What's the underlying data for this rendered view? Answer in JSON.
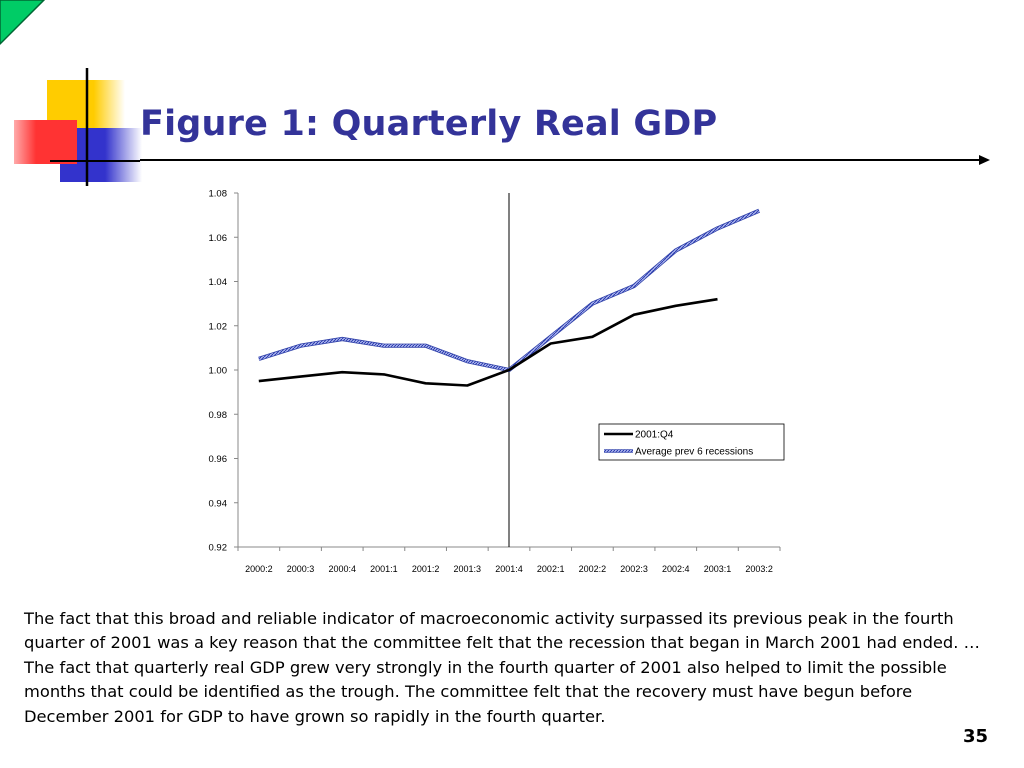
{
  "slide": {
    "title": "Figure 1: Quarterly Real GDP",
    "body": "The fact that this broad and reliable indicator of macroeconomic activity surpassed its previous peak in the fourth quarter of 2001 was a key reason that the committee felt that the recession that began in March 2001 had ended. … The fact that quarterly real GDP grew very strongly in the fourth quarter of 2001 also helped to limit the possible months that could be identified as the trough. The committee felt that the recovery must have begun before December 2001 for GDP to have grown so rapidly in the fourth quarter.",
    "page_number": "35",
    "colors": {
      "title": "#333399",
      "accent_green": "#00cc66",
      "deco_yellow": "#ffcc00",
      "deco_red": "#ff3333",
      "deco_blue": "#3333cc"
    }
  },
  "chart_data": {
    "type": "line",
    "title": "",
    "xlabel": "",
    "ylabel": "",
    "categories": [
      "2000:2",
      "2000:3",
      "2000:4",
      "2001:1",
      "2001:2",
      "2001:3",
      "2001:4",
      "2002:1",
      "2002:2",
      "2002:3",
      "2002:4",
      "2003:1",
      "2003:2"
    ],
    "ylim": [
      0.92,
      1.08
    ],
    "yticks": [
      "0.92",
      "0.94",
      "0.96",
      "0.98",
      "1.00",
      "1.02",
      "1.04",
      "1.06",
      "1.08"
    ],
    "grid": false,
    "vertical_marker_category": "2001:4",
    "legend_position": "bottom-right",
    "series": [
      {
        "name": "2001:Q4",
        "color": "#000000",
        "style": "solid",
        "values": [
          0.995,
          0.997,
          0.999,
          0.998,
          0.994,
          0.993,
          1.0,
          1.012,
          1.015,
          1.025,
          1.029,
          1.032,
          null
        ]
      },
      {
        "name": "Average prev 6 recessions",
        "color": "#5566cc",
        "style": "hatched",
        "values": [
          1.005,
          1.011,
          1.014,
          1.011,
          1.011,
          1.004,
          1.0,
          1.015,
          1.03,
          1.038,
          1.054,
          1.064,
          1.072
        ]
      }
    ]
  }
}
